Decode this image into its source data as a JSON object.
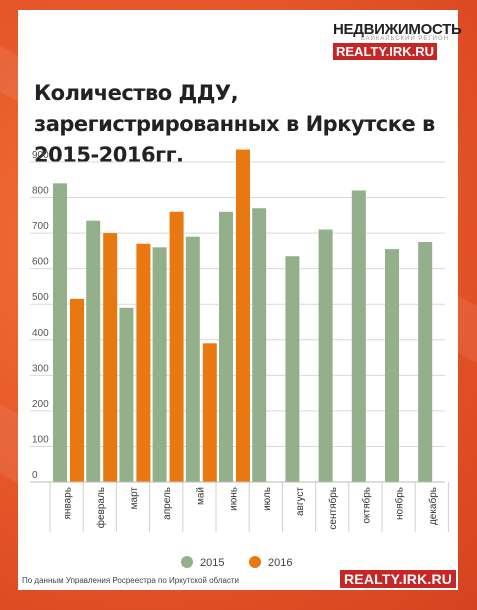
{
  "brand": {
    "name": "НЕДВИЖИМОСТЬ",
    "region": "БАЙКАЛЬСКИЙ РЕГИОН",
    "site": "REALTY.IRK.RU"
  },
  "source_note": "По данным Управления Росреестра по Иркутской области",
  "footer_site": "REALTY.IRK.RU",
  "colors": {
    "series_2015": "#93b08a",
    "series_2016": "#e8780f"
  },
  "chart_data": {
    "type": "bar",
    "title": "Количество ДДУ, зарегистрированных в Иркутске в 2015-2016гг.",
    "xlabel": "",
    "ylabel": "",
    "ylim": [
      0,
      900
    ],
    "yticks": [
      0,
      100,
      200,
      300,
      400,
      500,
      600,
      700,
      800,
      900
    ],
    "grid": true,
    "legend": "bottom-center",
    "categories": [
      "январь",
      "февраль",
      "март",
      "апрель",
      "май",
      "июнь",
      "июль",
      "август",
      "сентябрь",
      "октябрь",
      "ноябрь",
      "декабрь"
    ],
    "series": [
      {
        "name": "2015",
        "values": [
          840,
          735,
          490,
          660,
          690,
          760,
          770,
          635,
          710,
          820,
          655,
          675
        ]
      },
      {
        "name": "2016",
        "values": [
          515,
          700,
          670,
          760,
          390,
          935,
          null,
          null,
          null,
          null,
          null,
          null
        ]
      }
    ]
  }
}
